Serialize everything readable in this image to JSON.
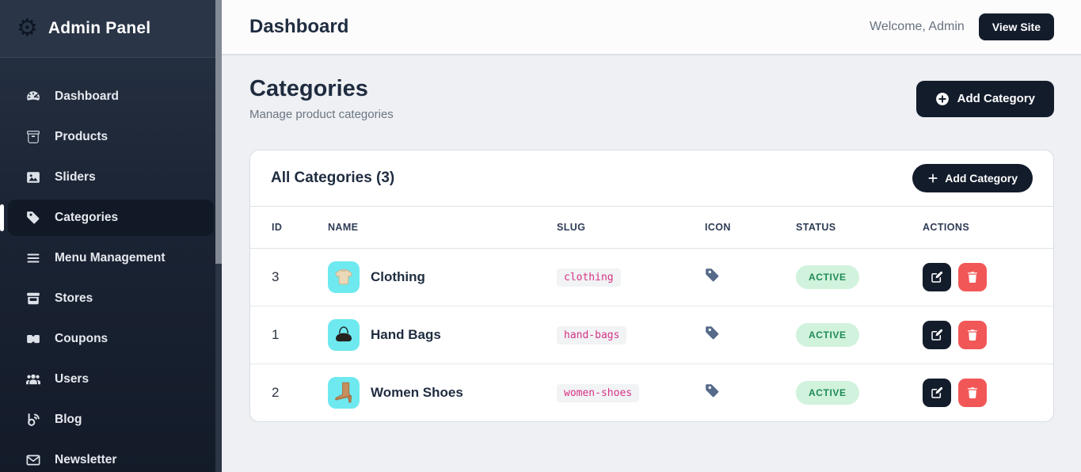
{
  "colors": {
    "accent_dark": "#131c2b",
    "danger_red": "#f25757",
    "status_green_bg": "#d1f2dd",
    "status_green_text": "#1f8b57",
    "slug_pink": "#d63384",
    "thumbnail_cyan": "#6ee9f0"
  },
  "sidebar": {
    "title": "Admin Panel",
    "logo_icon": "gear-icon",
    "items": [
      {
        "label": "Dashboard",
        "icon": "speedometer",
        "active": false
      },
      {
        "label": "Products",
        "icon": "box",
        "active": false
      },
      {
        "label": "Sliders",
        "icon": "image",
        "active": false
      },
      {
        "label": "Categories",
        "icon": "tag",
        "active": true
      },
      {
        "label": "Menu Management",
        "icon": "menu",
        "active": false
      },
      {
        "label": "Stores",
        "icon": "shop",
        "active": false
      },
      {
        "label": "Coupons",
        "icon": "ticket",
        "active": false
      },
      {
        "label": "Users",
        "icon": "users",
        "active": false
      },
      {
        "label": "Blog",
        "icon": "blog",
        "active": false
      },
      {
        "label": "Newsletter",
        "icon": "envelope",
        "active": false
      }
    ]
  },
  "topbar": {
    "title": "Dashboard",
    "welcome_text": "Welcome, Admin",
    "view_site_label": "View Site"
  },
  "page": {
    "title": "Categories",
    "subtitle": "Manage product categories",
    "add_category_label": "Add Category"
  },
  "card": {
    "title": "All Categories (3)",
    "add_category_label": "Add Category"
  },
  "table": {
    "columns": [
      "ID",
      "NAME",
      "SLUG",
      "ICON",
      "STATUS",
      "ACTIONS"
    ],
    "rows": [
      {
        "id": "3",
        "name": "Clothing",
        "slug": "clothing",
        "thumbnail": "sweater",
        "icon": "tag",
        "status": "ACTIVE"
      },
      {
        "id": "1",
        "name": "Hand Bags",
        "slug": "hand-bags",
        "thumbnail": "handbag",
        "icon": "tag",
        "status": "ACTIVE"
      },
      {
        "id": "2",
        "name": "Women Shoes",
        "slug": "women-shoes",
        "thumbnail": "boot",
        "icon": "tag",
        "status": "ACTIVE"
      }
    ]
  }
}
